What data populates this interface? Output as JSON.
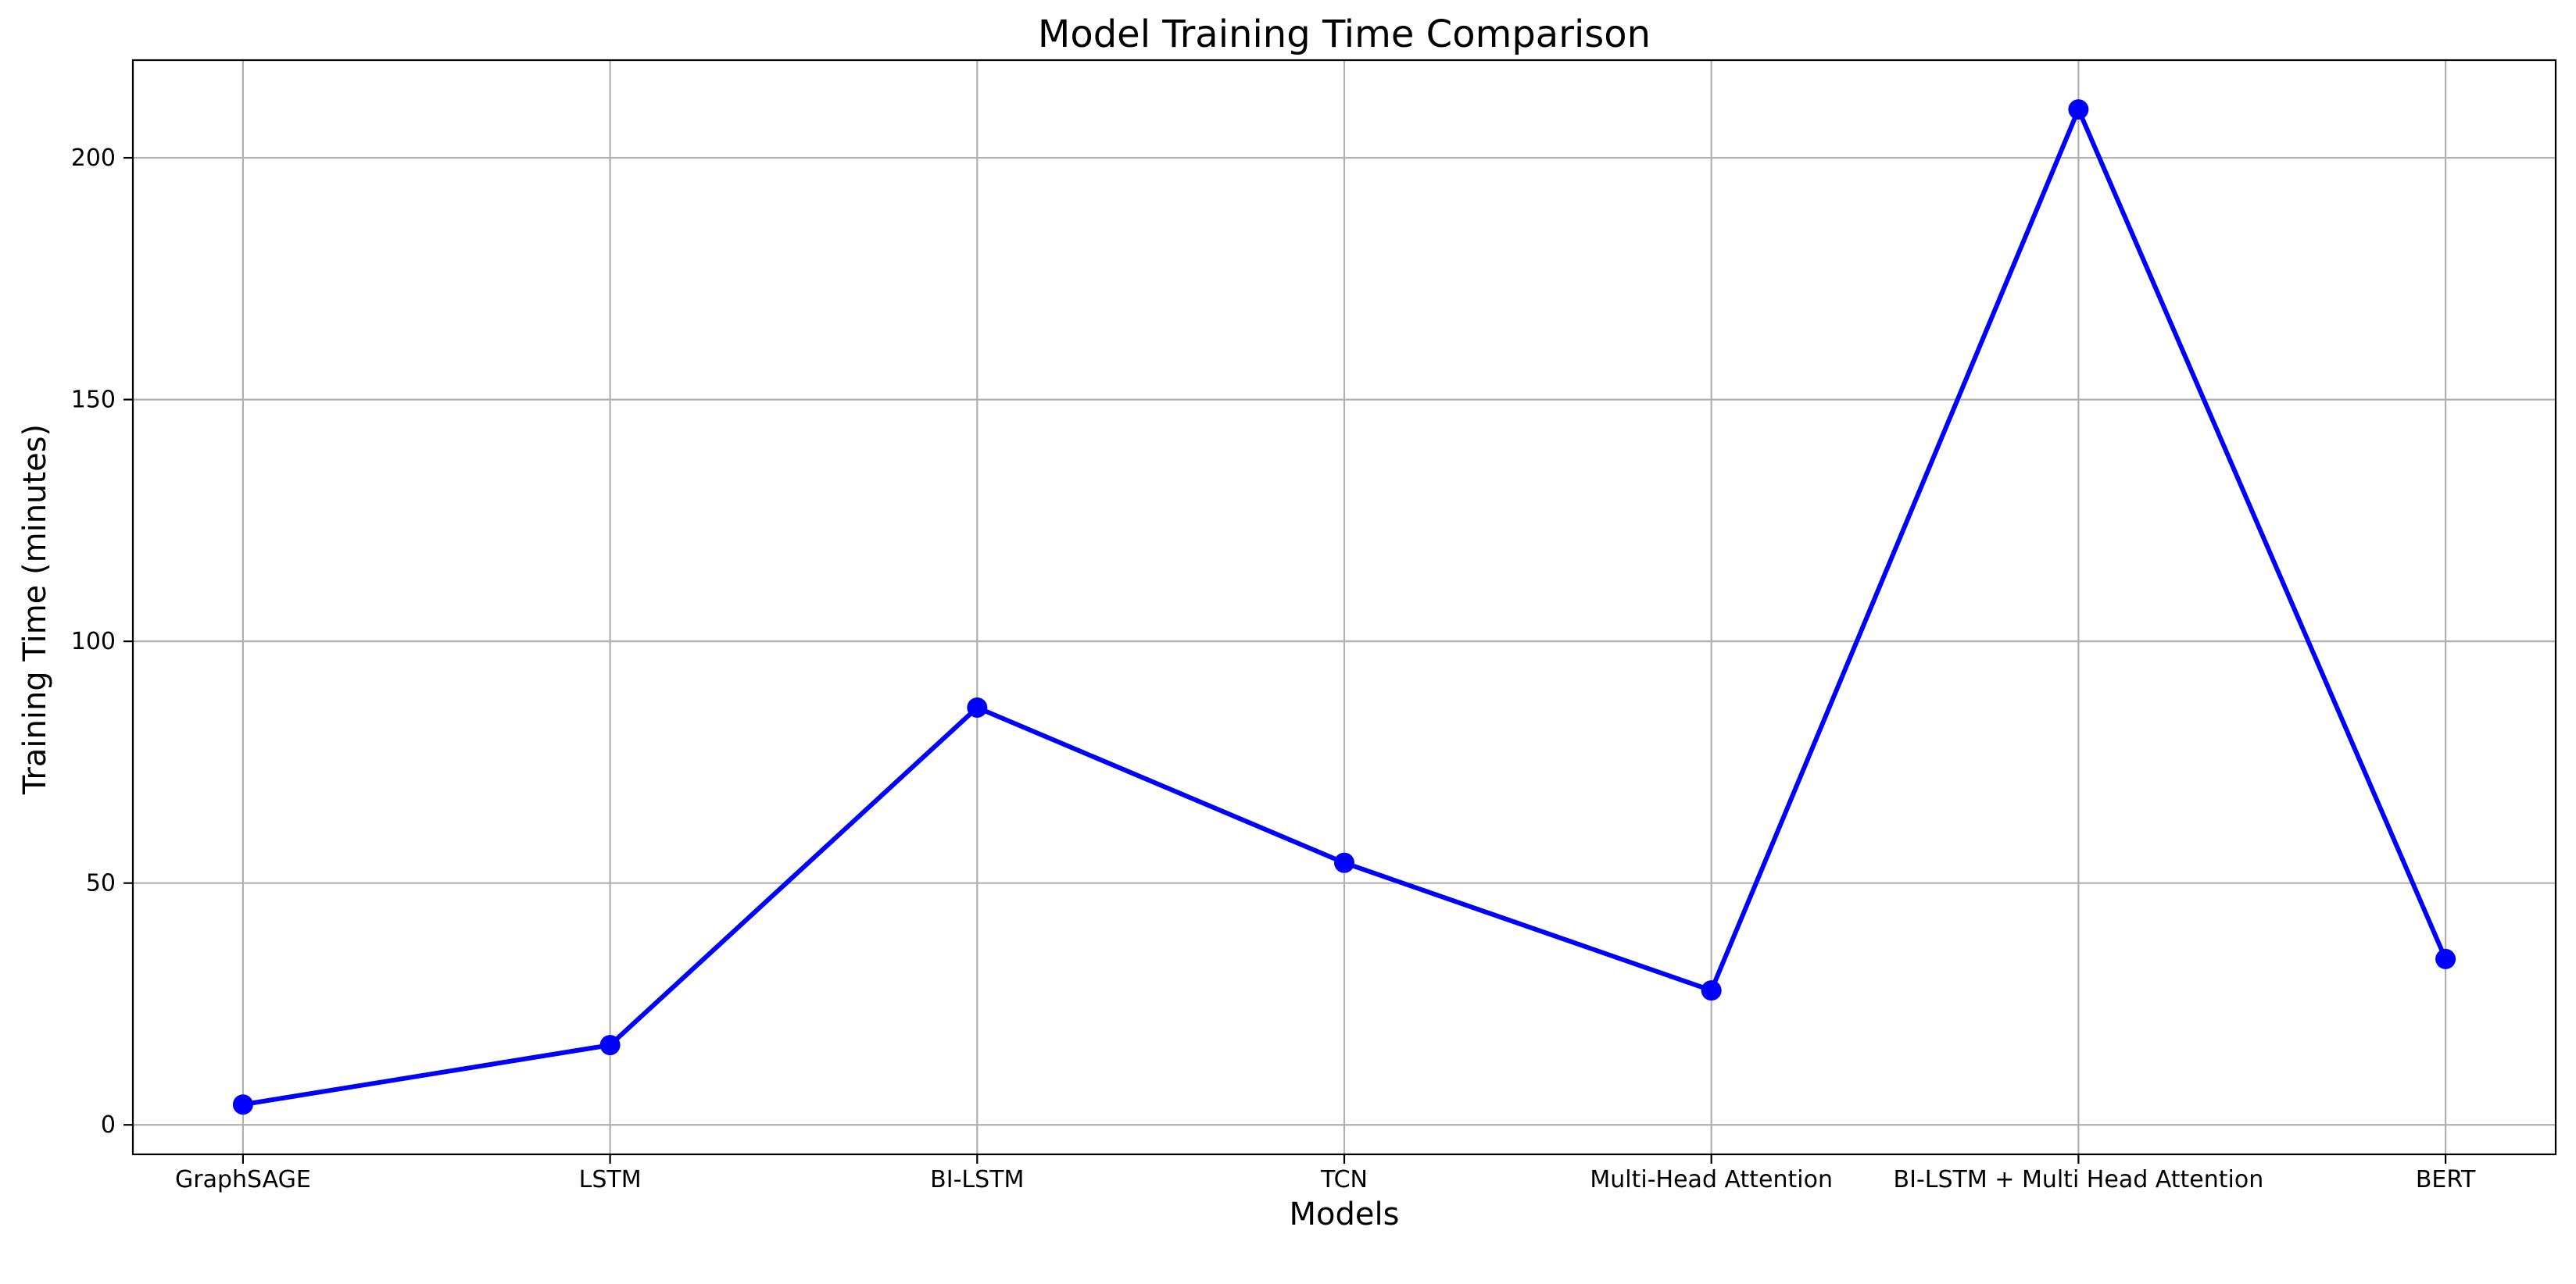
{
  "chart_data": {
    "type": "line",
    "title": "Model Training Time Comparison",
    "xlabel": "Models",
    "ylabel": "Training Time (minutes)",
    "categories": [
      "GraphSAGE",
      "LSTM",
      "BI-LSTM",
      "TCN",
      "Multi-Head Attention",
      "BI-LSTM + Multi Head Attention",
      "BERT"
    ],
    "series": [
      {
        "values": [
          4.2,
          16.5,
          86.3,
          54.2,
          27.8,
          210.0,
          34.3
        ],
        "color": "#0000ff",
        "marker": "circle"
      }
    ],
    "ylim": [
      -6.1,
      220.2
    ],
    "yticks": [
      0,
      50,
      100,
      150,
      200
    ],
    "grid": true,
    "legend": "none"
  }
}
